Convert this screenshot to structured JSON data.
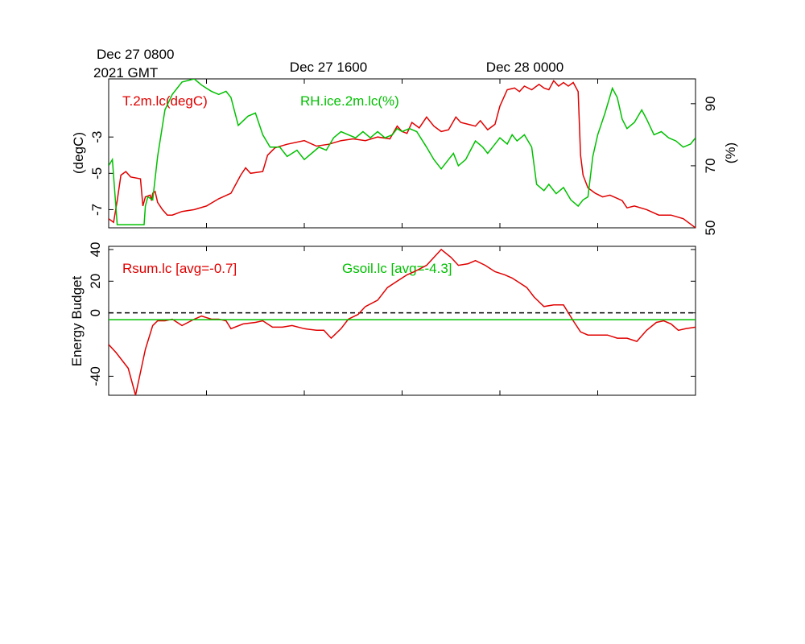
{
  "chart_data": [
    {
      "type": "line",
      "time_labels": {
        "start": [
          "Dec 27 0800",
          "2021 GMT"
        ],
        "t16": "Dec 27 1600",
        "t24": "Dec 28 0000"
      },
      "x_unit": "hours since Dec 27 0800 GMT",
      "xlim": [
        0,
        24
      ],
      "x_ticks": [
        0,
        4,
        8,
        12,
        16,
        20,
        24
      ],
      "left_axis": {
        "label": "(degC)",
        "ylim": [
          -8,
          0.2
        ],
        "ticks": [
          -7,
          -5,
          -3
        ],
        "tick_labels": [
          "-7",
          "-5",
          "-3"
        ]
      },
      "right_axis": {
        "label": "(%)",
        "ylim": [
          50,
          98
        ],
        "ticks": [
          50,
          70,
          90
        ],
        "tick_labels": [
          "50",
          "70",
          "90"
        ]
      },
      "series": [
        {
          "name": "T.2m.lc(degC)",
          "axis": "left",
          "color": "#e00000",
          "points": [
            [
              0,
              -7.5
            ],
            [
              0.2,
              -7.7
            ],
            [
              0.35,
              -6.5
            ],
            [
              0.5,
              -5.1
            ],
            [
              0.7,
              -4.9
            ],
            [
              0.9,
              -5.2
            ],
            [
              1.3,
              -5.3
            ],
            [
              1.4,
              -6.8
            ],
            [
              1.5,
              -6.3
            ],
            [
              1.7,
              -6.2
            ],
            [
              1.75,
              -6.5
            ],
            [
              1.8,
              -6.1
            ],
            [
              1.9,
              -6.0
            ],
            [
              2.0,
              -6.6
            ],
            [
              2.2,
              -7.0
            ],
            [
              2.4,
              -7.3
            ],
            [
              2.6,
              -7.3
            ],
            [
              3.0,
              -7.1
            ],
            [
              3.5,
              -7.0
            ],
            [
              4.0,
              -6.8
            ],
            [
              4.5,
              -6.4
            ],
            [
              5.0,
              -6.1
            ],
            [
              5.4,
              -5.1
            ],
            [
              5.6,
              -4.7
            ],
            [
              5.8,
              -5.0
            ],
            [
              6.3,
              -4.9
            ],
            [
              6.5,
              -4.0
            ],
            [
              6.8,
              -3.6
            ],
            [
              7.3,
              -3.4
            ],
            [
              8.0,
              -3.2
            ],
            [
              8.5,
              -3.5
            ],
            [
              9.0,
              -3.4
            ],
            [
              9.5,
              -3.2
            ],
            [
              10.0,
              -3.1
            ],
            [
              10.5,
              -3.2
            ],
            [
              11.0,
              -3.0
            ],
            [
              11.5,
              -3.1
            ],
            [
              11.8,
              -2.4
            ],
            [
              12.0,
              -2.7
            ],
            [
              12.2,
              -2.8
            ],
            [
              12.4,
              -2.2
            ],
            [
              12.7,
              -2.5
            ],
            [
              13.0,
              -1.9
            ],
            [
              13.3,
              -2.4
            ],
            [
              13.6,
              -2.7
            ],
            [
              13.9,
              -2.6
            ],
            [
              14.2,
              -1.9
            ],
            [
              14.4,
              -2.2
            ],
            [
              14.7,
              -2.3
            ],
            [
              15.0,
              -2.4
            ],
            [
              15.2,
              -2.1
            ],
            [
              15.5,
              -2.6
            ],
            [
              15.8,
              -2.3
            ],
            [
              16.0,
              -1.3
            ],
            [
              16.3,
              -0.4
            ],
            [
              16.6,
              -0.3
            ],
            [
              16.8,
              -0.5
            ],
            [
              17.0,
              -0.2
            ],
            [
              17.3,
              -0.4
            ],
            [
              17.6,
              -0.1
            ],
            [
              17.8,
              -0.3
            ],
            [
              18.0,
              -0.4
            ],
            [
              18.2,
              0.1
            ],
            [
              18.4,
              -0.2
            ],
            [
              18.6,
              0.0
            ],
            [
              18.8,
              -0.2
            ],
            [
              19.0,
              0.0
            ],
            [
              19.2,
              -0.5
            ],
            [
              19.3,
              -4.0
            ],
            [
              19.4,
              -5.1
            ],
            [
              19.6,
              -5.8
            ],
            [
              19.9,
              -6.1
            ],
            [
              20.2,
              -6.3
            ],
            [
              20.5,
              -6.2
            ],
            [
              21.0,
              -6.5
            ],
            [
              21.2,
              -6.9
            ],
            [
              21.5,
              -6.8
            ],
            [
              22.0,
              -7.0
            ],
            [
              22.5,
              -7.3
            ],
            [
              23.0,
              -7.3
            ],
            [
              23.5,
              -7.5
            ],
            [
              24.0,
              -8.0
            ]
          ]
        },
        {
          "name": "RH.ice.2m.lc(%)",
          "axis": "right",
          "color": "#00c000",
          "points": [
            [
              0,
              70
            ],
            [
              0.15,
              72
            ],
            [
              0.35,
              51
            ],
            [
              0.6,
              51
            ],
            [
              1.0,
              51
            ],
            [
              1.3,
              51
            ],
            [
              1.45,
              51
            ],
            [
              1.5,
              57
            ],
            [
              1.6,
              60
            ],
            [
              1.8,
              59
            ],
            [
              2.0,
              73
            ],
            [
              2.3,
              88
            ],
            [
              2.6,
              93
            ],
            [
              3.0,
              97
            ],
            [
              3.5,
              98
            ],
            [
              3.8,
              96
            ],
            [
              4.0,
              95
            ],
            [
              4.2,
              94
            ],
            [
              4.5,
              93
            ],
            [
              4.8,
              94
            ],
            [
              5.0,
              92
            ],
            [
              5.3,
              83
            ],
            [
              5.7,
              86
            ],
            [
              6.0,
              87
            ],
            [
              6.3,
              80
            ],
            [
              6.6,
              76
            ],
            [
              7.0,
              76
            ],
            [
              7.3,
              73
            ],
            [
              7.7,
              75
            ],
            [
              8.0,
              72
            ],
            [
              8.3,
              74
            ],
            [
              8.6,
              76
            ],
            [
              8.9,
              75
            ],
            [
              9.2,
              79
            ],
            [
              9.5,
              81
            ],
            [
              9.8,
              80
            ],
            [
              10.1,
              79
            ],
            [
              10.4,
              81
            ],
            [
              10.7,
              79
            ],
            [
              11.0,
              81
            ],
            [
              11.3,
              79
            ],
            [
              11.6,
              80
            ],
            [
              11.8,
              82
            ],
            [
              12.0,
              81
            ],
            [
              12.3,
              82
            ],
            [
              12.6,
              81
            ],
            [
              13.0,
              76
            ],
            [
              13.3,
              72
            ],
            [
              13.6,
              69
            ],
            [
              13.9,
              72
            ],
            [
              14.1,
              74
            ],
            [
              14.3,
              70
            ],
            [
              14.6,
              72
            ],
            [
              14.8,
              75
            ],
            [
              15.0,
              78
            ],
            [
              15.3,
              76
            ],
            [
              15.5,
              74
            ],
            [
              15.7,
              76
            ],
            [
              16.0,
              79
            ],
            [
              16.3,
              77
            ],
            [
              16.5,
              80
            ],
            [
              16.7,
              78
            ],
            [
              17.0,
              80
            ],
            [
              17.3,
              76
            ],
            [
              17.5,
              64
            ],
            [
              17.8,
              62
            ],
            [
              18.0,
              64
            ],
            [
              18.3,
              61
            ],
            [
              18.6,
              63
            ],
            [
              18.9,
              59
            ],
            [
              19.2,
              57
            ],
            [
              19.4,
              59
            ],
            [
              19.6,
              60
            ],
            [
              19.8,
              73
            ],
            [
              20.0,
              80
            ],
            [
              20.3,
              87
            ],
            [
              20.6,
              95
            ],
            [
              20.8,
              92
            ],
            [
              21.0,
              85
            ],
            [
              21.2,
              82
            ],
            [
              21.5,
              84
            ],
            [
              21.8,
              88
            ],
            [
              22.0,
              85
            ],
            [
              22.3,
              80
            ],
            [
              22.6,
              81
            ],
            [
              22.9,
              79
            ],
            [
              23.2,
              78
            ],
            [
              23.5,
              76
            ],
            [
              23.8,
              77
            ],
            [
              24.0,
              79
            ]
          ]
        }
      ]
    },
    {
      "type": "line",
      "xlim": [
        0,
        24
      ],
      "x_ticks": [
        0,
        4,
        8,
        12,
        16,
        20,
        24
      ],
      "ylabel": "Energy Budget",
      "ylim": [
        -52,
        42
      ],
      "y_ticks": [
        -40,
        0,
        20,
        40
      ],
      "y_tick_labels": [
        "-40",
        "0",
        "20",
        "40"
      ],
      "zero_line": {
        "value": 0,
        "style": "dashed",
        "color": "#000000"
      },
      "series": [
        {
          "name": "Rsum.lc [avg=-0.7]",
          "color": "#e00000",
          "points": [
            [
              0,
              -20
            ],
            [
              0.3,
              -25
            ],
            [
              0.8,
              -35
            ],
            [
              1.1,
              -52
            ],
            [
              1.5,
              -23
            ],
            [
              1.8,
              -8
            ],
            [
              2.0,
              -5
            ],
            [
              2.3,
              -5
            ],
            [
              2.6,
              -4
            ],
            [
              3.0,
              -8
            ],
            [
              3.5,
              -4
            ],
            [
              3.8,
              -2
            ],
            [
              4.2,
              -4
            ],
            [
              4.5,
              -4
            ],
            [
              4.8,
              -5
            ],
            [
              5.0,
              -10
            ],
            [
              5.5,
              -7
            ],
            [
              6.0,
              -6
            ],
            [
              6.3,
              -5
            ],
            [
              6.7,
              -9
            ],
            [
              7.1,
              -9
            ],
            [
              7.5,
              -8
            ],
            [
              8.0,
              -10
            ],
            [
              8.5,
              -11
            ],
            [
              8.8,
              -11
            ],
            [
              9.1,
              -16
            ],
            [
              9.5,
              -10
            ],
            [
              9.8,
              -4
            ],
            [
              10.2,
              -1
            ],
            [
              10.5,
              4
            ],
            [
              11.0,
              8
            ],
            [
              11.4,
              16
            ],
            [
              11.8,
              20
            ],
            [
              12.2,
              24
            ],
            [
              12.5,
              26
            ],
            [
              13.0,
              30
            ],
            [
              13.3,
              35
            ],
            [
              13.6,
              40
            ],
            [
              14.0,
              35
            ],
            [
              14.3,
              30
            ],
            [
              14.7,
              31
            ],
            [
              15.0,
              33
            ],
            [
              15.4,
              30
            ],
            [
              15.8,
              26
            ],
            [
              16.2,
              24
            ],
            [
              16.5,
              22
            ],
            [
              16.8,
              19
            ],
            [
              17.1,
              16
            ],
            [
              17.4,
              10
            ],
            [
              17.8,
              4
            ],
            [
              18.2,
              5
            ],
            [
              18.6,
              5
            ],
            [
              19.0,
              -5
            ],
            [
              19.3,
              -12
            ],
            [
              19.6,
              -14
            ],
            [
              20.0,
              -14
            ],
            [
              20.4,
              -14
            ],
            [
              20.8,
              -16
            ],
            [
              21.2,
              -16
            ],
            [
              21.6,
              -18
            ],
            [
              22.0,
              -11
            ],
            [
              22.4,
              -6
            ],
            [
              22.7,
              -5
            ],
            [
              23.0,
              -7
            ],
            [
              23.3,
              -11
            ],
            [
              23.6,
              -10
            ],
            [
              24.0,
              -9
            ]
          ]
        },
        {
          "name": "Gsoil.lc [avg=-4.3]",
          "color": "#00c000",
          "points": [
            [
              0,
              -4.3
            ],
            [
              24,
              -4.3
            ]
          ]
        }
      ]
    }
  ]
}
